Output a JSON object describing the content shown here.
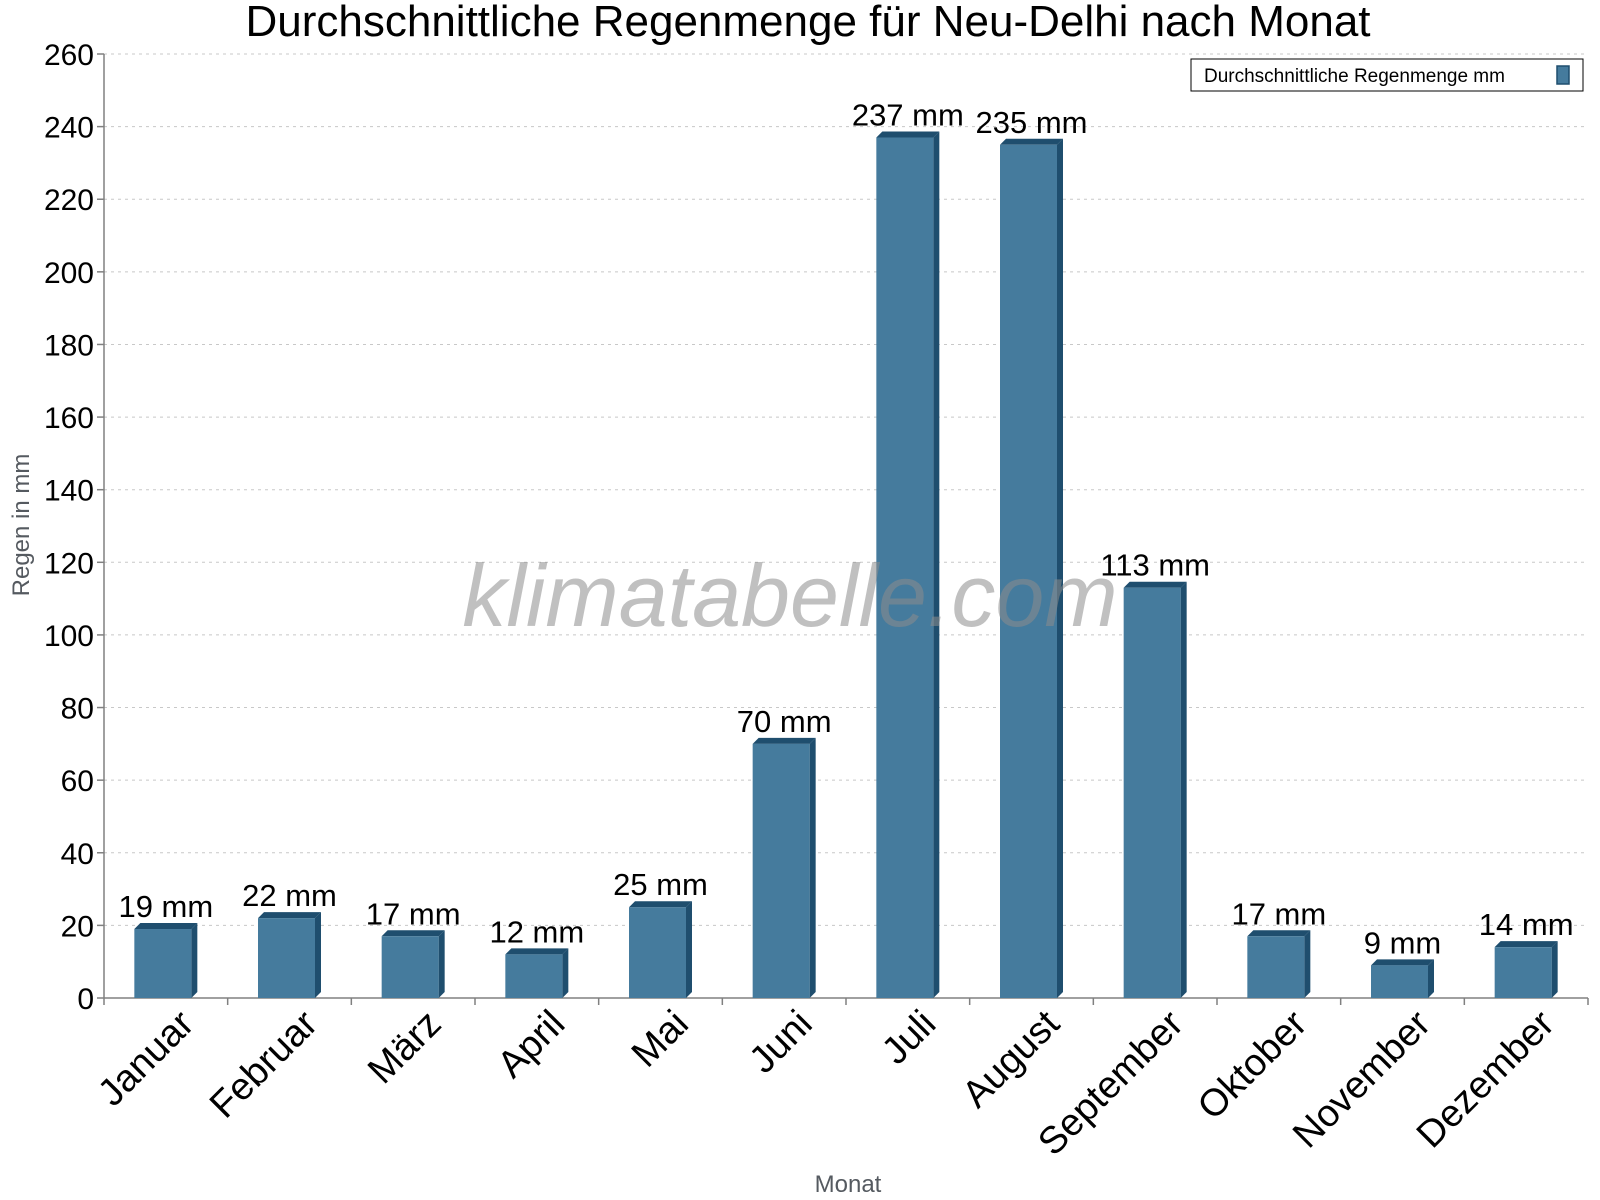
{
  "chart_data": {
    "type": "bar",
    "title": "Durchschnittliche Regenmenge für Neu-Delhi nach Monat",
    "xlabel": "Monat",
    "ylabel": "Regen in mm",
    "ylim": [
      0,
      260
    ],
    "yticks": [
      0,
      20,
      40,
      60,
      80,
      100,
      120,
      140,
      160,
      180,
      200,
      220,
      240,
      260
    ],
    "categories": [
      "Januar",
      "Februar",
      "März",
      "April",
      "Mai",
      "Juni",
      "Juli",
      "August",
      "September",
      "Oktober",
      "November",
      "Dezember"
    ],
    "series": [
      {
        "name": "Durchschnittliche Regenmenge mm",
        "values": [
          19,
          22,
          17,
          12,
          25,
          70,
          237,
          235,
          113,
          17,
          9,
          14
        ],
        "labels": [
          "19 mm",
          "22 mm",
          "17 mm",
          "12 mm",
          "25 mm",
          "70 mm",
          "237 mm",
          "235 mm",
          "113 mm",
          "17 mm",
          "9 mm",
          "14 mm"
        ]
      }
    ],
    "legend_position": "top-right",
    "grid": true,
    "watermark": "klimatabelle.com",
    "colors": {
      "bar": "#457b9d",
      "bar_side": "#1f4e6e",
      "grid": "#c8c8c8",
      "axis": "#808080"
    }
  }
}
